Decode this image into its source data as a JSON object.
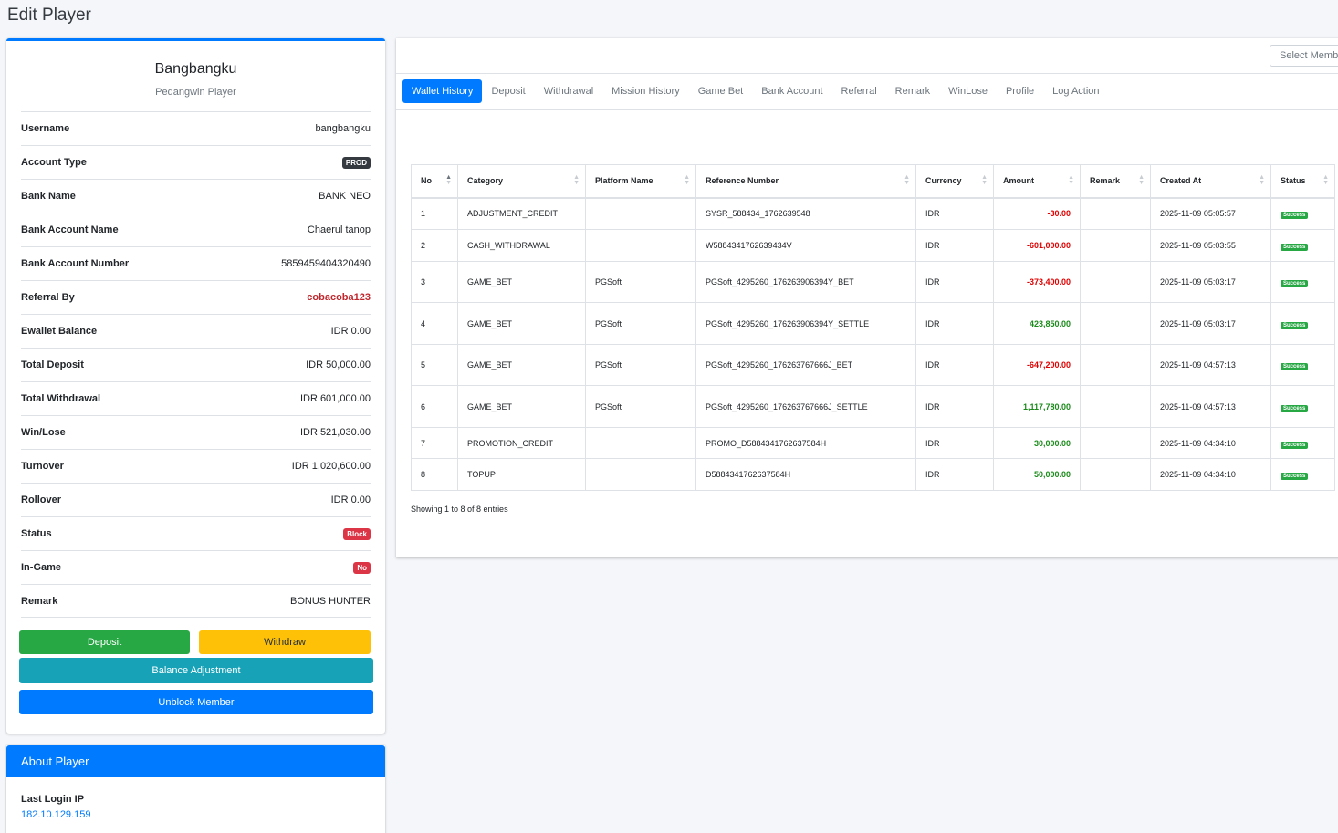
{
  "page": {
    "title": "Edit Player"
  },
  "profile": {
    "name": "Bangbangku",
    "subtitle": "Pedangwin Player",
    "rows": [
      {
        "label": "Username",
        "value": "bangbangku"
      },
      {
        "label": "Account Type",
        "value": "PROD"
      },
      {
        "label": "Bank Name",
        "value": "BANK NEO"
      },
      {
        "label": "Bank Account Name",
        "value": "Chaerul tanop"
      },
      {
        "label": "Bank Account Number",
        "value": "5859459404320490"
      },
      {
        "label": "Referral By",
        "value": "cobacoba123"
      },
      {
        "label": "Ewallet Balance",
        "value": "IDR 0.00"
      },
      {
        "label": "Total Deposit",
        "value": "IDR 50,000.00"
      },
      {
        "label": "Total Withdrawal",
        "value": "IDR 601,000.00"
      },
      {
        "label": "Win/Lose",
        "value": "IDR 521,030.00"
      },
      {
        "label": "Turnover",
        "value": "IDR 1,020,600.00"
      },
      {
        "label": "Rollover",
        "value": "IDR 0.00"
      },
      {
        "label": "Status",
        "value": "Block"
      },
      {
        "label": "In-Game",
        "value": "No"
      },
      {
        "label": "Remark",
        "value": "BONUS HUNTER"
      }
    ],
    "buttons": {
      "deposit": "Deposit",
      "withdraw": "Withdraw",
      "adjust": "Balance Adjustment",
      "unblock": "Unblock Member"
    }
  },
  "about": {
    "title": "About Player",
    "last_login_label": "Last Login IP",
    "last_login_ip": "182.10.129.159"
  },
  "main": {
    "select_placeholder": "Select Member",
    "tabs": [
      "Wallet History",
      "Deposit",
      "Withdrawal",
      "Mission History",
      "Game Bet",
      "Bank Account",
      "Referral",
      "Remark",
      "WinLose",
      "Profile",
      "Log Action"
    ],
    "table": {
      "headers": [
        "No",
        "Category",
        "Platform Name",
        "Reference Number",
        "Currency",
        "Amount",
        "Remark",
        "Created At",
        "Status"
      ],
      "rows": [
        {
          "no": "1",
          "category": "ADJUSTMENT_CREDIT",
          "platform": "",
          "ref": "SYSR_588434_1762639548",
          "currency": "IDR",
          "amount": "-30.00",
          "remark": "",
          "created": "2025-11-09 05:05:57",
          "status": "Success"
        },
        {
          "no": "2",
          "category": "CASH_WITHDRAWAL",
          "platform": "",
          "ref": "W5884341762639434V",
          "currency": "IDR",
          "amount": "-601,000.00",
          "remark": "",
          "created": "2025-11-09 05:03:55",
          "status": "Success"
        },
        {
          "no": "3",
          "category": "GAME_BET",
          "platform": "PGSoft",
          "ref": "PGSoft_4295260_176263906394Y_BET",
          "currency": "IDR",
          "amount": "-373,400.00",
          "remark": "",
          "created": "2025-11-09 05:03:17",
          "status": "Success"
        },
        {
          "no": "4",
          "category": "GAME_BET",
          "platform": "PGSoft",
          "ref": "PGSoft_4295260_176263906394Y_SETTLE",
          "currency": "IDR",
          "amount": "423,850.00",
          "remark": "",
          "created": "2025-11-09 05:03:17",
          "status": "Success"
        },
        {
          "no": "5",
          "category": "GAME_BET",
          "platform": "PGSoft",
          "ref": "PGSoft_4295260_176263767666J_BET",
          "currency": "IDR",
          "amount": "-647,200.00",
          "remark": "",
          "created": "2025-11-09 04:57:13",
          "status": "Success"
        },
        {
          "no": "6",
          "category": "GAME_BET",
          "platform": "PGSoft",
          "ref": "PGSoft_4295260_176263767666J_SETTLE",
          "currency": "IDR",
          "amount": "1,117,780.00",
          "remark": "",
          "created": "2025-11-09 04:57:13",
          "status": "Success"
        },
        {
          "no": "7",
          "category": "PROMOTION_CREDIT",
          "platform": "",
          "ref": "PROMO_D5884341762637584H",
          "currency": "IDR",
          "amount": "30,000.00",
          "remark": "",
          "created": "2025-11-09 04:34:10",
          "status": "Success"
        },
        {
          "no": "8",
          "category": "TOPUP",
          "platform": "",
          "ref": "D5884341762637584H",
          "currency": "IDR",
          "amount": "50,000.00",
          "remark": "",
          "created": "2025-11-09 04:34:10",
          "status": "Success"
        }
      ]
    },
    "showing": "Showing 1 to 8 of 8 entries"
  },
  "colors": {
    "primary": "#007bff",
    "success": "#28a745",
    "warning": "#ffc107",
    "info": "#17a2b8",
    "danger": "#dc3545",
    "negative": "#e00000",
    "positive": "#1a8a1a"
  }
}
